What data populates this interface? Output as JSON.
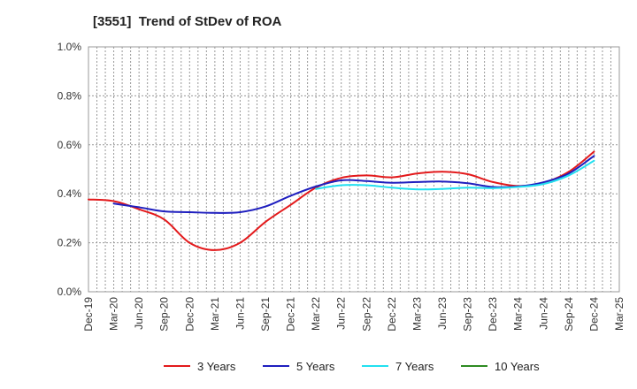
{
  "chart_data": {
    "type": "line",
    "title": "[3551]  Trend of StDev of ROA",
    "xlabel": "",
    "ylabel": "",
    "ylim": [
      0.0,
      1.0
    ],
    "y_ticks": [
      "0.0%",
      "0.2%",
      "0.4%",
      "0.6%",
      "0.8%",
      "1.0%"
    ],
    "x_ticks": [
      "Dec-19",
      "Mar-20",
      "Jun-20",
      "Sep-20",
      "Dec-20",
      "Mar-21",
      "Jun-21",
      "Sep-21",
      "Dec-21",
      "Mar-22",
      "Jun-22",
      "Sep-22",
      "Dec-22",
      "Mar-23",
      "Jun-23",
      "Sep-23",
      "Dec-23",
      "Mar-24",
      "Jun-24",
      "Sep-24",
      "Dec-24",
      "Mar-25"
    ],
    "grid": true,
    "legend_position": "bottom",
    "series": [
      {
        "name": "3 Years",
        "color": "#e31a1c",
        "values": [
          0.377,
          0.37,
          0.337,
          0.295,
          0.2,
          0.17,
          0.2,
          0.285,
          0.355,
          0.425,
          0.465,
          0.475,
          0.467,
          0.483,
          0.49,
          0.48,
          0.448,
          0.432,
          0.445,
          0.49,
          0.572,
          null
        ]
      },
      {
        "name": "5 Years",
        "color": "#1f1fbf",
        "values": [
          null,
          0.36,
          0.345,
          0.328,
          0.325,
          0.322,
          0.325,
          0.348,
          0.392,
          0.43,
          0.455,
          0.452,
          0.445,
          0.448,
          0.45,
          0.443,
          0.428,
          0.43,
          0.447,
          0.483,
          0.555,
          null
        ]
      },
      {
        "name": "7 Years",
        "color": "#22e0f0",
        "values": [
          null,
          null,
          null,
          null,
          null,
          null,
          null,
          null,
          null,
          0.42,
          0.435,
          0.435,
          0.425,
          0.418,
          0.42,
          0.425,
          0.423,
          0.428,
          0.44,
          0.475,
          0.535,
          null
        ]
      },
      {
        "name": "10 Years",
        "color": "#2e8b22",
        "values": [
          null,
          null,
          null,
          null,
          null,
          null,
          null,
          null,
          null,
          null,
          null,
          null,
          null,
          null,
          null,
          null,
          null,
          null,
          null,
          null,
          null,
          null
        ]
      }
    ]
  }
}
